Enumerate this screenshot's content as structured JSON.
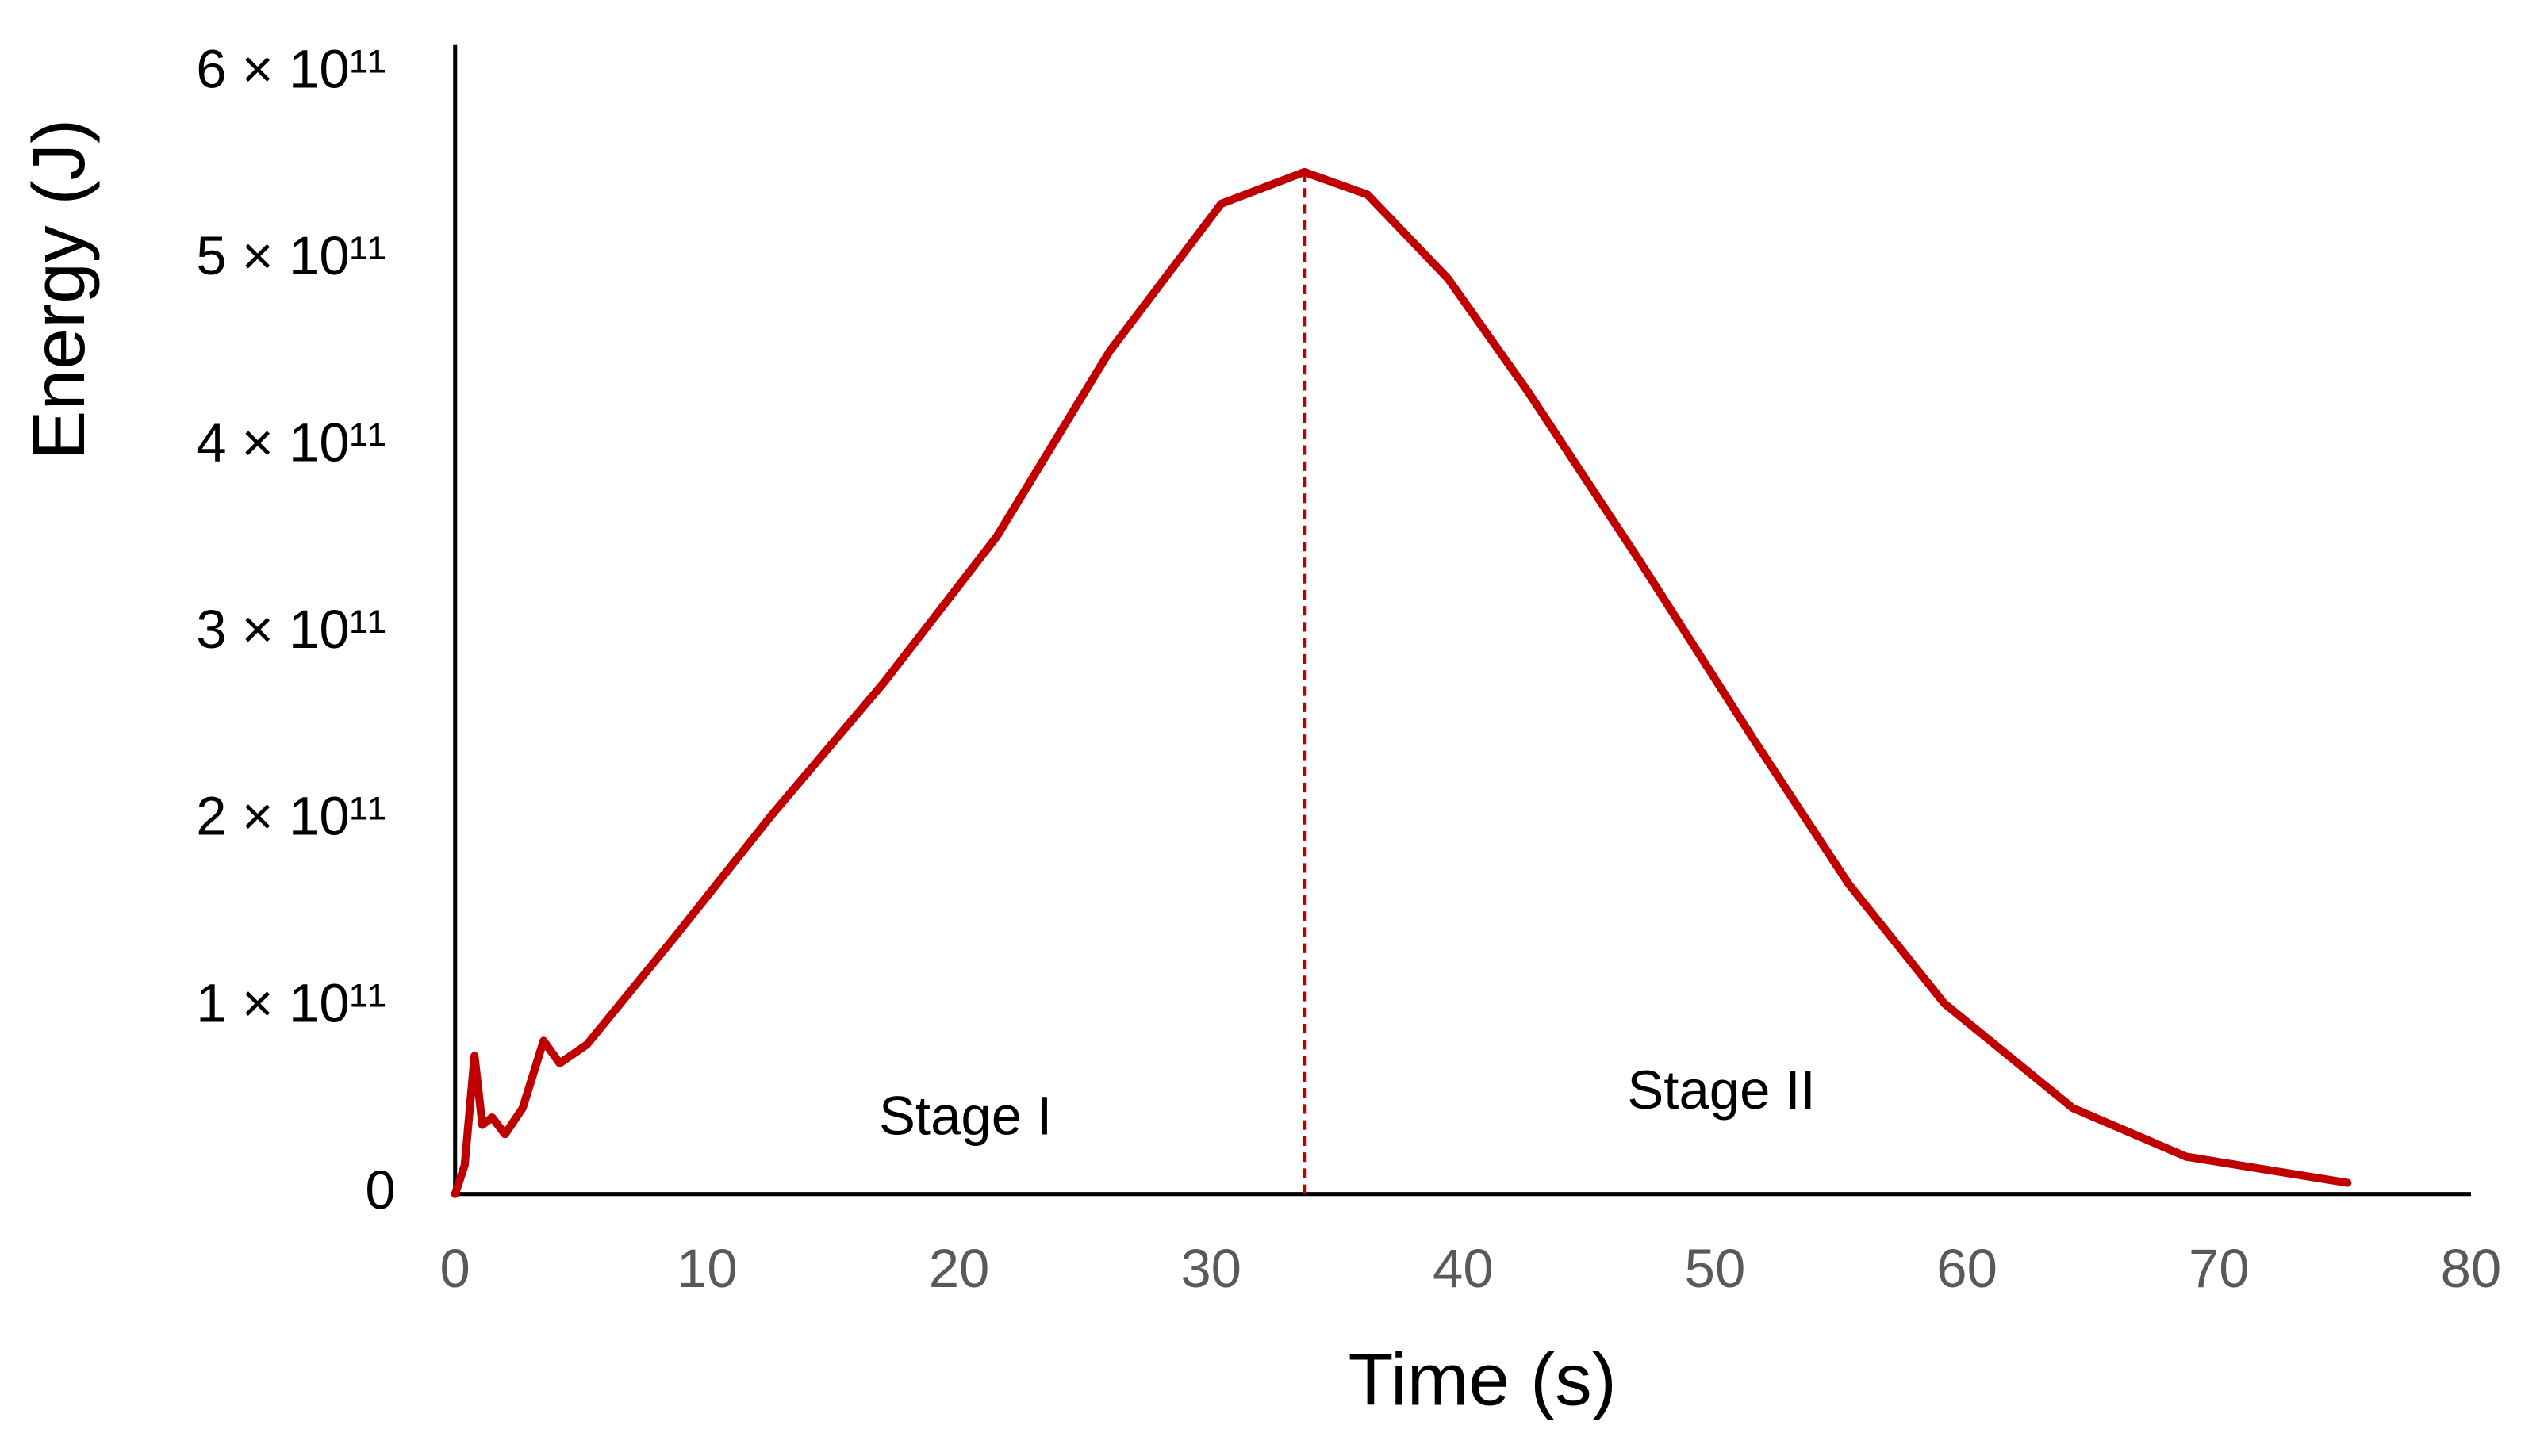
{
  "chart_data": {
    "type": "line",
    "x_label": "Time (s)",
    "y_label": "Energy (J)",
    "x": [
      0,
      0.38,
      0.77,
      1.08,
      1.47,
      1.98,
      2.68,
      3.51,
      4.15,
      5.23,
      8.74,
      12.57,
      17.03,
      21.5,
      25.97,
      30.4,
      33.7,
      36.2,
      39.4,
      42.6,
      47.0,
      51.5,
      55.3,
      59.1,
      64.2,
      68.7,
      75.1
    ],
    "values": [
      0,
      15500000000.0,
      74000000000.0,
      37000000000.0,
      41000000000.0,
      32000000000.0,
      46000000000.0,
      82000000000.0,
      70000000000.0,
      80000000000.0,
      138000000000.0,
      203000000000.0,
      274000000000.0,
      352000000000.0,
      451000000000.0,
      530000000000.0,
      547000000000.0,
      535000000000.0,
      490000000000.0,
      429000000000.0,
      339000000000.0,
      244000000000.0,
      166000000000.0,
      102000000000.0,
      46000000000.0,
      20000000000.0,
      6000000000.0
    ],
    "color": "#c00000",
    "vertical_line_x": 33.7,
    "annotations": [
      {
        "text": "Stage I",
        "x": 20
      },
      {
        "text": "Stage II",
        "x": 50
      }
    ],
    "xlim": [
      0,
      80
    ],
    "xticks": [
      0,
      10,
      20,
      30,
      40,
      50,
      60,
      70,
      80
    ],
    "ylim": [
      0,
      615000000000.0
    ],
    "yticks": [
      0,
      {
        "value": 100000000000.0,
        "label": "1 × 10¹¹"
      },
      {
        "value": 200000000000.0,
        "label": "2 × 10¹¹"
      },
      {
        "value": 300000000000.0,
        "label": "3 × 10¹¹"
      },
      {
        "value": 400000000000.0,
        "label": "4 × 10¹¹"
      },
      {
        "value": 500000000000.0,
        "label": "5 × 10¹¹"
      },
      {
        "value": 600000000000.0,
        "label": "6 × 10¹¹"
      }
    ],
    "grid": false
  }
}
